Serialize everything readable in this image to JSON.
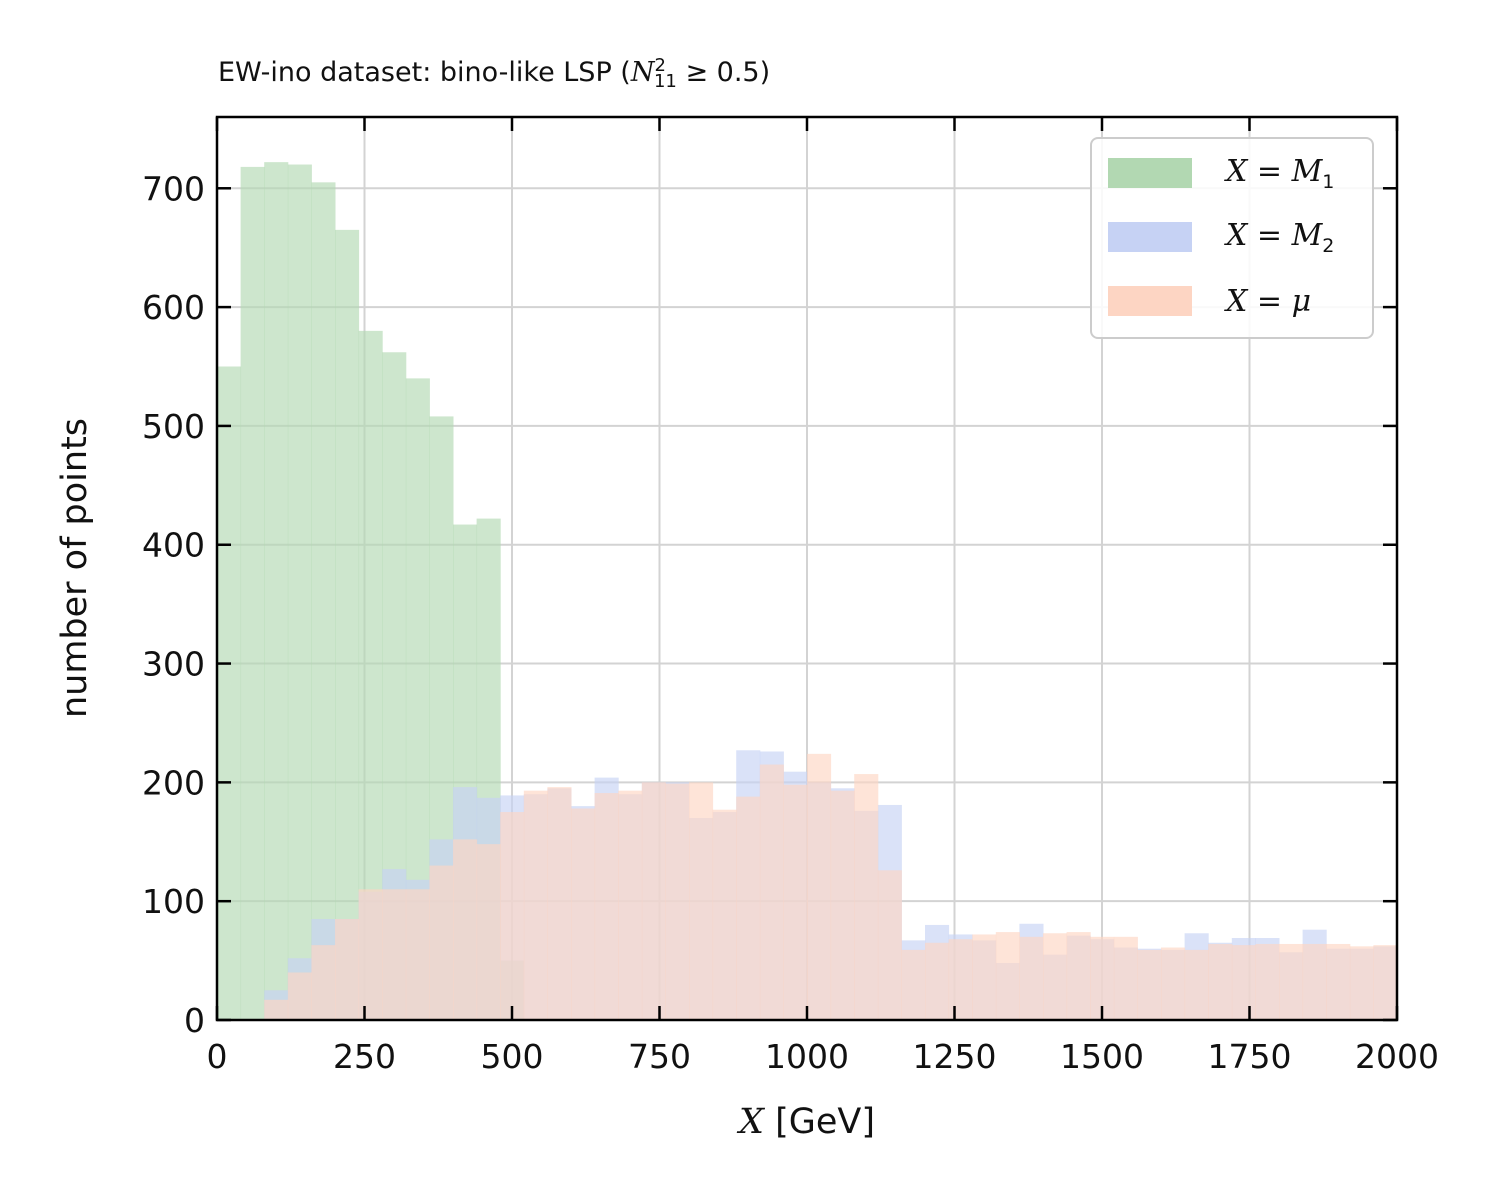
{
  "chart_data": {
    "type": "bar",
    "subtype": "histogram",
    "title": "EW-ino dataset: bino-like LSP (",
    "title_math": {
      "symbol": "N",
      "sub": "11",
      "sup": "2",
      "relation": "≥",
      "value": "0.5",
      "close": ")"
    },
    "xlabel_var": "X",
    "xlabel_unit": " [GeV]",
    "ylabel": "number of points",
    "xlim": [
      0,
      2000
    ],
    "ylim": [
      0,
      760
    ],
    "xticks": [
      0,
      250,
      500,
      750,
      1000,
      1250,
      1500,
      1750,
      2000
    ],
    "yticks": [
      0,
      100,
      200,
      300,
      400,
      500,
      600,
      700
    ],
    "grid": true,
    "legend_position": "top-right",
    "bin_width": 40,
    "series": [
      {
        "name": "X = M1",
        "label_var": "X = M",
        "label_sub": "1",
        "color": "#b2d8b2",
        "bin_start": 0,
        "values": [
          550,
          718,
          722,
          720,
          705,
          665,
          580,
          562,
          540,
          508,
          417,
          422,
          50
        ]
      },
      {
        "name": "X = M2",
        "label_var": "X = M",
        "label_sub": "2",
        "color": "#c6d2f4",
        "bin_start": 80,
        "values": [
          25,
          52,
          85,
          85,
          108,
          127,
          118,
          152,
          196,
          187,
          189,
          190,
          195,
          180,
          204,
          190,
          200,
          200,
          170,
          175,
          227,
          226,
          209,
          200,
          195,
          176,
          181,
          67,
          80,
          72,
          67,
          48,
          81,
          55,
          71,
          68,
          61,
          60,
          59,
          73,
          65,
          69,
          69,
          57,
          76,
          60,
          60,
          62,
          62,
          62
        ]
      },
      {
        "name": "X = μ",
        "label_var": "X = μ",
        "label_sub": "",
        "color": "#fdd5c3",
        "bin_start": 80,
        "values": [
          17,
          40,
          63,
          85,
          110,
          110,
          110,
          130,
          152,
          148,
          175,
          193,
          196,
          178,
          191,
          193,
          200,
          199,
          200,
          177,
          188,
          215,
          198,
          224,
          193,
          207,
          126,
          59,
          65,
          68,
          72,
          74,
          70,
          73,
          74,
          70,
          70,
          59,
          61,
          59,
          64,
          63,
          64,
          64,
          64,
          64,
          62,
          63,
          64,
          64
        ]
      }
    ]
  }
}
